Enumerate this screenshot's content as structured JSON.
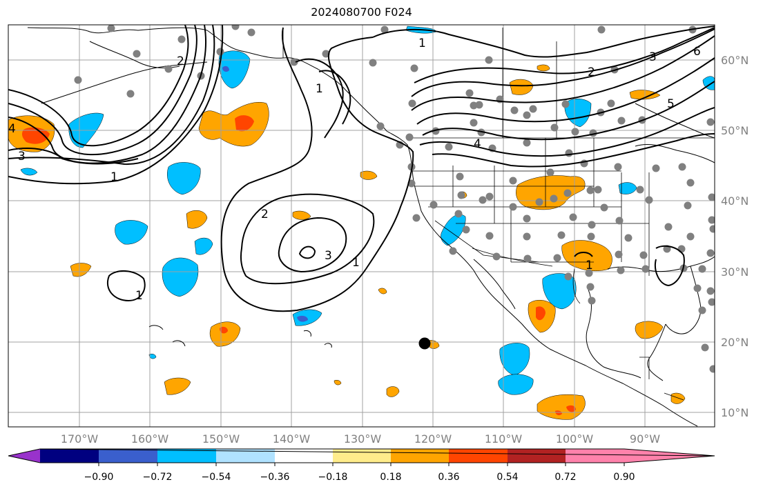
{
  "title": "2024080700 F024",
  "map": {
    "lon_labels": [
      "170°W",
      "160°W",
      "150°W",
      "140°W",
      "130°W",
      "120°W",
      "110°W",
      "100°W",
      "90°W"
    ],
    "lat_labels": [
      "60°N",
      "50°N",
      "40°N",
      "30°N",
      "20°N",
      "10°N"
    ],
    "contour_labels": [
      "1",
      "2",
      "3",
      "4",
      "5",
      "6",
      "1",
      "2",
      "3",
      "4",
      "1",
      "2",
      "3",
      "1",
      "1",
      "1"
    ]
  },
  "colorbar": {
    "tick_labels": [
      "−0.90",
      "−0.72",
      "−0.54",
      "−0.36",
      "−0.18",
      "0.18",
      "0.36",
      "0.54",
      "0.72",
      "0.90"
    ],
    "colors": [
      "#9932cc",
      "#000080",
      "#3a5fcd",
      "#00bfff",
      "#b0e2ff",
      "#ffffff",
      "#ffec8b",
      "#ffa500",
      "#ff4500",
      "#b22222",
      "#ff82ab"
    ]
  },
  "colors": {
    "negative_fill": "#00bfff",
    "positive_fill": "#ffa500",
    "strong_positive": "#ff4500",
    "station_dots": "#808080",
    "gridlines": "#a0a0a0",
    "marker": "#000000"
  }
}
